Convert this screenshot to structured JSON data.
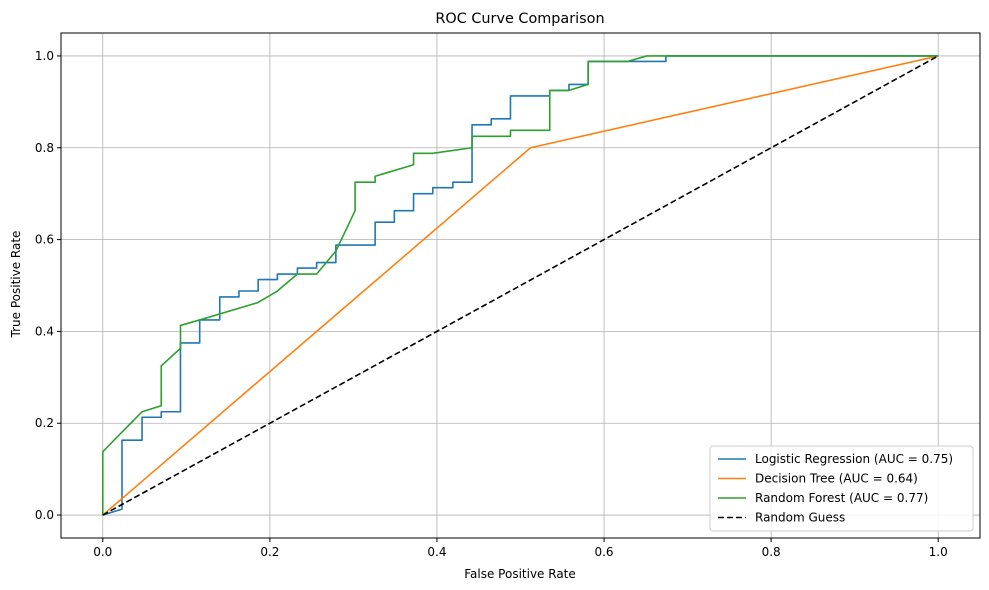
{
  "chart_data": {
    "type": "line",
    "title": "ROC Curve Comparison",
    "xlabel": "False Positive Rate",
    "ylabel": "True Positive Rate",
    "xlim": [
      -0.05,
      1.05
    ],
    "ylim": [
      -0.05,
      1.05
    ],
    "xticks": [
      "0.0",
      "0.2",
      "0.4",
      "0.6",
      "0.8",
      "1.0"
    ],
    "yticks": [
      "0.0",
      "0.2",
      "0.4",
      "0.6",
      "0.8",
      "1.0"
    ],
    "grid": true,
    "legend_position": "bottom-right",
    "series": [
      {
        "name": "Logistic Regression (AUC = 0.75)",
        "color": "#1f77b4",
        "style": "solid",
        "x": [
          0,
          0.023,
          0.023,
          0.047,
          0.047,
          0.07,
          0.07,
          0.093,
          0.093,
          0.116,
          0.116,
          0.14,
          0.14,
          0.163,
          0.163,
          0.186,
          0.186,
          0.209,
          0.209,
          0.233,
          0.233,
          0.256,
          0.256,
          0.279,
          0.279,
          0.326,
          0.326,
          0.349,
          0.349,
          0.372,
          0.372,
          0.395,
          0.395,
          0.419,
          0.419,
          0.442,
          0.442,
          0.465,
          0.465,
          0.488,
          0.488,
          0.535,
          0.535,
          0.558,
          0.558,
          0.581,
          0.581,
          0.674,
          0.674,
          1.0
        ],
        "y": [
          0,
          0.013,
          0.163,
          0.163,
          0.213,
          0.213,
          0.225,
          0.225,
          0.375,
          0.375,
          0.425,
          0.425,
          0.475,
          0.475,
          0.488,
          0.488,
          0.513,
          0.513,
          0.525,
          0.525,
          0.538,
          0.538,
          0.55,
          0.55,
          0.588,
          0.588,
          0.638,
          0.638,
          0.663,
          0.663,
          0.7,
          0.7,
          0.713,
          0.713,
          0.725,
          0.725,
          0.85,
          0.85,
          0.863,
          0.863,
          0.913,
          0.913,
          0.925,
          0.925,
          0.938,
          0.938,
          0.988,
          0.988,
          1.0,
          1.0
        ]
      },
      {
        "name": "Decision Tree (AUC = 0.64)",
        "color": "#ff7f0e",
        "style": "solid",
        "x": [
          0,
          0.512,
          1.0
        ],
        "y": [
          0,
          0.8,
          1.0
        ]
      },
      {
        "name": "Random Forest (AUC = 0.77)",
        "color": "#2ca02c",
        "style": "solid",
        "x": [
          0,
          0,
          0,
          0.047,
          0.07,
          0.07,
          0.093,
          0.093,
          0.116,
          0.186,
          0.209,
          0.233,
          0.256,
          0.279,
          0.302,
          0.302,
          0.326,
          0.326,
          0.372,
          0.372,
          0.395,
          0.442,
          0.442,
          0.488,
          0.488,
          0.535,
          0.535,
          0.558,
          0.581,
          0.581,
          0.628,
          0.651,
          1.0
        ],
        "y": [
          0,
          0.013,
          0.138,
          0.225,
          0.238,
          0.325,
          0.363,
          0.413,
          0.425,
          0.463,
          0.488,
          0.525,
          0.525,
          0.575,
          0.663,
          0.725,
          0.725,
          0.738,
          0.763,
          0.788,
          0.788,
          0.8,
          0.825,
          0.825,
          0.838,
          0.838,
          0.925,
          0.925,
          0.938,
          0.988,
          0.988,
          1.0,
          1.0
        ]
      },
      {
        "name": "Random Guess",
        "color": "#000000",
        "style": "dashed",
        "x": [
          0,
          1
        ],
        "y": [
          0,
          1
        ]
      }
    ]
  }
}
